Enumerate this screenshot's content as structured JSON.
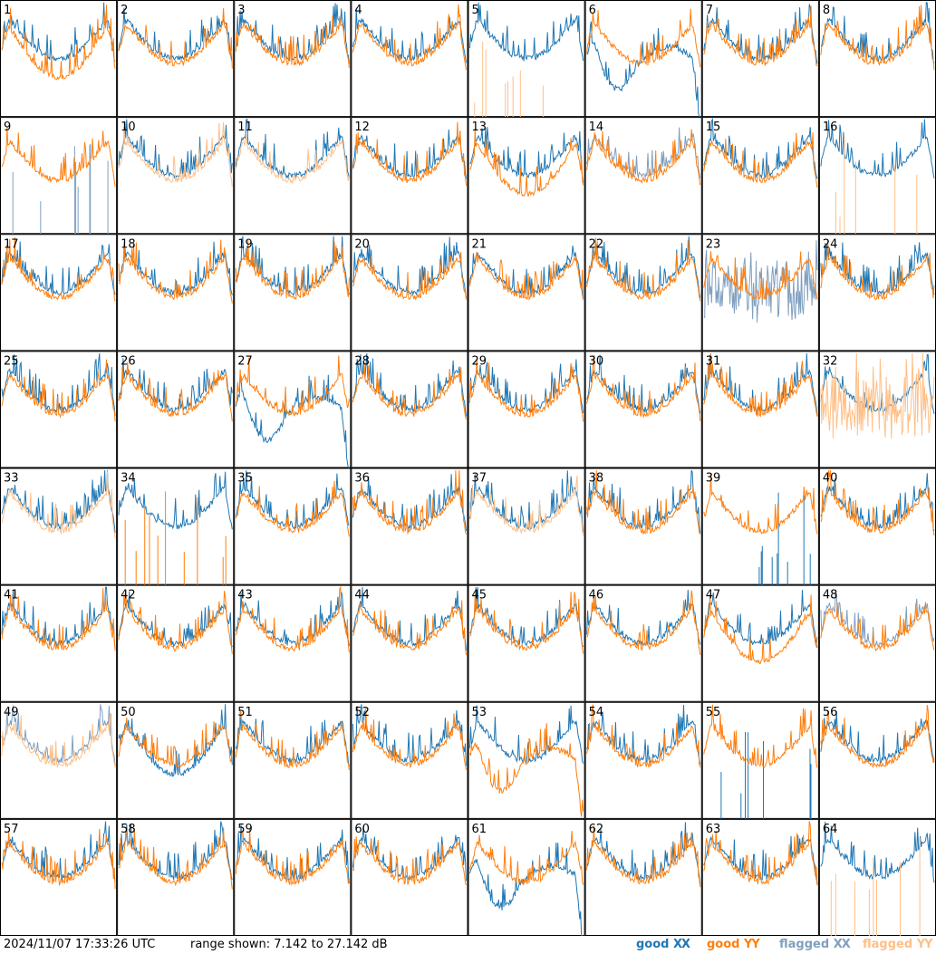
{
  "timestamp": "2024/11/07 17:33:26 UTC",
  "range_label": "range shown: 7.142 to 27.142 dB",
  "legend": [
    {
      "label": "good",
      "pol": "XX",
      "color": "#1f77b4"
    },
    {
      "label": "good",
      "pol": "YY",
      "color": "#ff7f0e"
    },
    {
      "label": "flagged",
      "pol": "XX",
      "color": "#7f9fbf"
    },
    {
      "label": "flagged",
      "pol": "YY",
      "color": "#ffbf87"
    }
  ],
  "chart_data": {
    "type": "line",
    "grid": "8x8 small multiples",
    "y_range_db": [
      7.142,
      27.142
    ],
    "panels": [
      {
        "id": "1",
        "xx": "good",
        "yy": "good",
        "note": "yy low"
      },
      {
        "id": "2",
        "xx": "good",
        "yy": "good"
      },
      {
        "id": "3",
        "xx": "good",
        "yy": "good"
      },
      {
        "id": "4",
        "xx": "good",
        "yy": "good"
      },
      {
        "id": "5",
        "xx": "good",
        "yy": "flagged",
        "note": "yy spikes only"
      },
      {
        "id": "6",
        "xx": "good",
        "yy": "good",
        "note": "xx dip"
      },
      {
        "id": "7",
        "xx": "good",
        "yy": "good"
      },
      {
        "id": "8",
        "xx": "good",
        "yy": "good"
      },
      {
        "id": "9",
        "xx": "flagged",
        "yy": "good",
        "note": "xx spikes only"
      },
      {
        "id": "10",
        "xx": "good",
        "yy": "flagged"
      },
      {
        "id": "11",
        "xx": "good",
        "yy": "flagged"
      },
      {
        "id": "12",
        "xx": "good",
        "yy": "good"
      },
      {
        "id": "13",
        "xx": "good",
        "yy": "good",
        "note": "yy low"
      },
      {
        "id": "14",
        "xx": "flagged",
        "yy": "good"
      },
      {
        "id": "15",
        "xx": "good",
        "yy": "good"
      },
      {
        "id": "16",
        "xx": "good",
        "yy": "flagged",
        "note": "yy spikes only"
      },
      {
        "id": "17",
        "xx": "good",
        "yy": "good"
      },
      {
        "id": "18",
        "xx": "good",
        "yy": "good"
      },
      {
        "id": "19",
        "xx": "good",
        "yy": "good"
      },
      {
        "id": "20",
        "xx": "good",
        "yy": "good"
      },
      {
        "id": "21",
        "xx": "good",
        "yy": "good"
      },
      {
        "id": "22",
        "xx": "good",
        "yy": "good"
      },
      {
        "id": "23",
        "xx": "flagged",
        "yy": "good",
        "note": "xx noisy"
      },
      {
        "id": "24",
        "xx": "good",
        "yy": "good"
      },
      {
        "id": "25",
        "xx": "good",
        "yy": "good"
      },
      {
        "id": "26",
        "xx": "good",
        "yy": "good"
      },
      {
        "id": "27",
        "xx": "good",
        "yy": "good",
        "note": "xx dip"
      },
      {
        "id": "28",
        "xx": "good",
        "yy": "good"
      },
      {
        "id": "29",
        "xx": "good",
        "yy": "good"
      },
      {
        "id": "30",
        "xx": "good",
        "yy": "good"
      },
      {
        "id": "31",
        "xx": "good",
        "yy": "good"
      },
      {
        "id": "32",
        "xx": "good",
        "yy": "flagged",
        "note": "yy noisy"
      },
      {
        "id": "33",
        "xx": "good",
        "yy": "flagged"
      },
      {
        "id": "34",
        "xx": "good",
        "yy": "good",
        "note": "yy spikes only"
      },
      {
        "id": "35",
        "xx": "good",
        "yy": "good"
      },
      {
        "id": "36",
        "xx": "good",
        "yy": "good"
      },
      {
        "id": "37",
        "xx": "good",
        "yy": "flagged"
      },
      {
        "id": "38",
        "xx": "good",
        "yy": "good"
      },
      {
        "id": "39",
        "xx": "good",
        "yy": "good",
        "note": "xx spikes only"
      },
      {
        "id": "40",
        "xx": "good",
        "yy": "good"
      },
      {
        "id": "41",
        "xx": "good",
        "yy": "good"
      },
      {
        "id": "42",
        "xx": "good",
        "yy": "good"
      },
      {
        "id": "43",
        "xx": "good",
        "yy": "good"
      },
      {
        "id": "44",
        "xx": "good",
        "yy": "good"
      },
      {
        "id": "45",
        "xx": "good",
        "yy": "good"
      },
      {
        "id": "46",
        "xx": "good",
        "yy": "good"
      },
      {
        "id": "47",
        "xx": "good",
        "yy": "good",
        "note": "yy low"
      },
      {
        "id": "48",
        "xx": "flagged",
        "yy": "good"
      },
      {
        "id": "49",
        "xx": "flagged",
        "yy": "flagged"
      },
      {
        "id": "50",
        "xx": "good",
        "yy": "good",
        "note": "xx low"
      },
      {
        "id": "51",
        "xx": "good",
        "yy": "good"
      },
      {
        "id": "52",
        "xx": "good",
        "yy": "good"
      },
      {
        "id": "53",
        "xx": "good",
        "yy": "good",
        "note": "yy dip"
      },
      {
        "id": "54",
        "xx": "good",
        "yy": "good"
      },
      {
        "id": "55",
        "xx": "good",
        "yy": "good",
        "note": "xx spikes only"
      },
      {
        "id": "56",
        "xx": "good",
        "yy": "good"
      },
      {
        "id": "57",
        "xx": "good",
        "yy": "good"
      },
      {
        "id": "58",
        "xx": "good",
        "yy": "good"
      },
      {
        "id": "59",
        "xx": "good",
        "yy": "good"
      },
      {
        "id": "60",
        "xx": "good",
        "yy": "good"
      },
      {
        "id": "61",
        "xx": "good",
        "yy": "good",
        "note": "xx dip"
      },
      {
        "id": "62",
        "xx": "good",
        "yy": "good"
      },
      {
        "id": "63",
        "xx": "good",
        "yy": "good"
      },
      {
        "id": "64",
        "xx": "good",
        "yy": "flagged",
        "note": "yy spikes only"
      }
    ]
  }
}
